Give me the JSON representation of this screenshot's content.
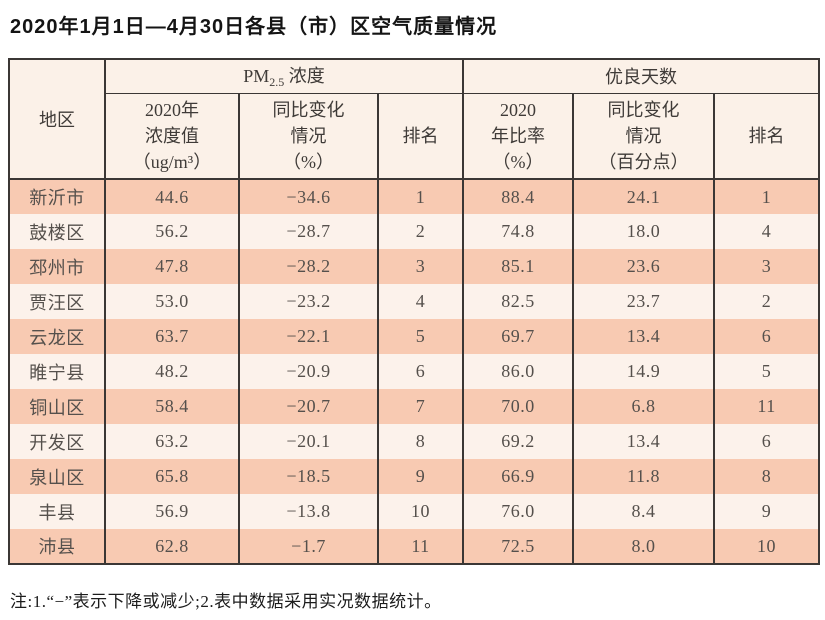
{
  "page": {
    "title": "2020年1月1日—4月30日各县（市）区空气质量情况",
    "note": "注:1.“−”表示下降或减少;2.表中数据采用实况数据统计。"
  },
  "table": {
    "group_headers": {
      "region": "地区",
      "pm25_prefix": "PM",
      "pm25_sub": "2.5",
      "pm25_suffix": " 浓度",
      "good_days": "优良天数"
    },
    "sub_headers": [
      {
        "lines": [
          "2020年",
          "浓度值",
          "（ug/m³）"
        ]
      },
      {
        "lines": [
          "同比变化",
          "情况",
          "（%）"
        ]
      },
      {
        "lines": [
          "排名"
        ]
      },
      {
        "lines": [
          "2020",
          "年比率",
          "（%）"
        ]
      },
      {
        "lines": [
          "同比变化",
          "情况",
          "（百分点）"
        ]
      },
      {
        "lines": [
          "排名"
        ]
      }
    ]
  },
  "chart_data": {
    "type": "table",
    "title": "2020年1月1日—4月30日各县（市）区空气质量情况",
    "column_groups": [
      "地区",
      "PM2.5浓度",
      "优良天数"
    ],
    "columns": [
      "地区",
      "2020年浓度值（ug/m³）",
      "同比变化情况（%）",
      "排名",
      "2020年比率（%）",
      "同比变化情况（百分点）",
      "排名"
    ],
    "rows": [
      [
        "新沂市",
        "44.6",
        "−34.6",
        "1",
        "88.4",
        "24.1",
        "1"
      ],
      [
        "鼓楼区",
        "56.2",
        "−28.7",
        "2",
        "74.8",
        "18.0",
        "4"
      ],
      [
        "邳州市",
        "47.8",
        "−28.2",
        "3",
        "85.1",
        "23.6",
        "3"
      ],
      [
        "贾汪区",
        "53.0",
        "−23.2",
        "4",
        "82.5",
        "23.7",
        "2"
      ],
      [
        "云龙区",
        "63.7",
        "−22.1",
        "5",
        "69.7",
        "13.4",
        "6"
      ],
      [
        "睢宁县",
        "48.2",
        "−20.9",
        "6",
        "86.0",
        "14.9",
        "5"
      ],
      [
        "铜山区",
        "58.4",
        "−20.7",
        "7",
        "70.0",
        "6.8",
        "11"
      ],
      [
        "开发区",
        "63.2",
        "−20.1",
        "8",
        "69.2",
        "13.4",
        "6"
      ],
      [
        "泉山区",
        "65.8",
        "−18.5",
        "9",
        "66.9",
        "11.8",
        "8"
      ],
      [
        "丰县",
        "56.9",
        "−13.8",
        "10",
        "76.0",
        "8.4",
        "9"
      ],
      [
        "沛县",
        "62.8",
        "−1.7",
        "11",
        "72.5",
        "8.0",
        "10"
      ]
    ]
  },
  "colors": {
    "row_odd": "#f8cab2",
    "row_even": "#fcf2eb",
    "header_bg": "#fbf1e8",
    "border": "#3b3735",
    "title_text": "#141414",
    "cell_text": "#55504c"
  }
}
